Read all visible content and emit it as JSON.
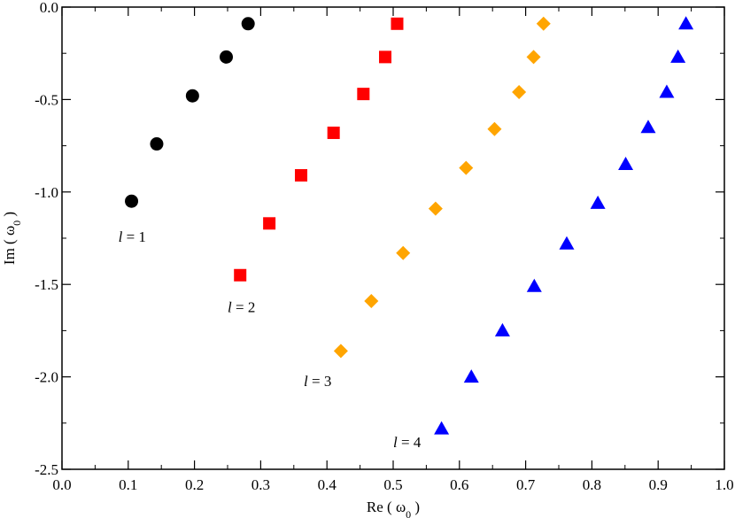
{
  "chart_data": {
    "type": "scatter",
    "xlabel": {
      "main": "Re ( ω",
      "sub": "0",
      "end": " )"
    },
    "ylabel": {
      "main": "Im ( ω",
      "sub": "0",
      "end": " )"
    },
    "xlim": [
      0.0,
      1.0
    ],
    "ylim": [
      -2.5,
      0.0
    ],
    "xticks": [
      "0.0",
      "0.1",
      "0.2",
      "0.3",
      "0.4",
      "0.5",
      "0.6",
      "0.7",
      "0.8",
      "0.9",
      "1.0"
    ],
    "yticks": [
      "0.0",
      "-0.5",
      "-1.0",
      "-1.5",
      "-2.0",
      "-2.5"
    ],
    "grid": false,
    "series": [
      {
        "marker": "circle",
        "color": "#000000",
        "label": {
          "var": "l",
          "rest": " = 1"
        },
        "label_at": [
          0.085,
          -1.27
        ],
        "x": [
          0.281,
          0.248,
          0.197,
          0.143,
          0.105
        ],
        "y": [
          -0.09,
          -0.27,
          -0.48,
          -0.74,
          -1.05
        ]
      },
      {
        "marker": "square",
        "color": "#ff0000",
        "label": {
          "var": "l",
          "rest": " = 2"
        },
        "label_at": [
          0.25,
          -1.65
        ],
        "x": [
          0.506,
          0.488,
          0.455,
          0.41,
          0.361,
          0.313,
          0.269
        ],
        "y": [
          -0.09,
          -0.27,
          -0.47,
          -0.68,
          -0.91,
          -1.17,
          -1.45
        ]
      },
      {
        "marker": "diamond",
        "color": "#ffa500",
        "label": {
          "var": "l",
          "rest": " = 3"
        },
        "label_at": [
          0.365,
          -2.05
        ],
        "x": [
          0.727,
          0.712,
          0.69,
          0.653,
          0.61,
          0.564,
          0.515,
          0.467,
          0.421
        ],
        "y": [
          -0.09,
          -0.27,
          -0.46,
          -0.66,
          -0.87,
          -1.09,
          -1.33,
          -1.59,
          -1.86
        ]
      },
      {
        "marker": "triangle",
        "color": "#0000ff",
        "label": {
          "var": "l",
          "rest": " = 4"
        },
        "label_at": [
          0.5,
          -2.38
        ],
        "x": [
          0.942,
          0.93,
          0.913,
          0.885,
          0.851,
          0.809,
          0.762,
          0.713,
          0.665,
          0.618,
          0.573
        ],
        "y": [
          -0.09,
          -0.27,
          -0.46,
          -0.65,
          -0.85,
          -1.06,
          -1.28,
          -1.51,
          -1.75,
          -2.0,
          -2.28
        ]
      }
    ]
  }
}
